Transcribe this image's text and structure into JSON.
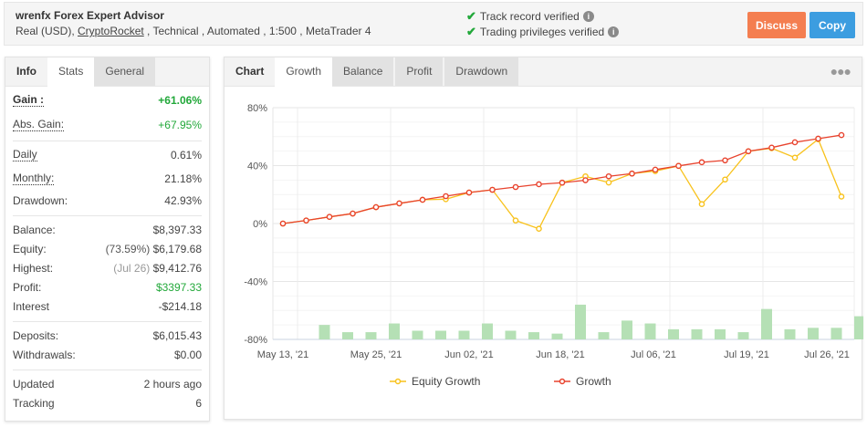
{
  "header": {
    "title": "wrenfx Forex Expert Advisor",
    "subtitle_prefix": "Real (USD), ",
    "broker_link": "CryptoRocket",
    "subtitle_suffix": " , Technical , Automated , 1:500 , MetaTrader 4",
    "verifications": [
      {
        "label": "Track record verified",
        "icon": "check-icon"
      },
      {
        "label": "Trading privileges verified",
        "icon": "check-icon"
      }
    ],
    "discuss_label": "Discuss",
    "copy_label": "Copy",
    "colors": {
      "discuss": "#f47e50",
      "copy": "#3c9de0",
      "verified": "#22a83a"
    }
  },
  "left_panel": {
    "tabs": [
      {
        "label": "Info"
      },
      {
        "label": "Stats"
      },
      {
        "label": "General"
      }
    ],
    "gain": {
      "label": "Gain :",
      "value": "+61.06%"
    },
    "abs_gain": {
      "label": "Abs. Gain:",
      "value": "+67.95%"
    },
    "daily": {
      "label": "Daily",
      "value": "0.61%"
    },
    "monthly": {
      "label": "Monthly:",
      "value": "21.18%"
    },
    "drawdown": {
      "label": "Drawdown:",
      "value": "42.93%"
    },
    "balance": {
      "label": "Balance:",
      "value": "$8,397.33"
    },
    "equity": {
      "label": "Equity:",
      "pct": "(73.59%)",
      "value": "$6,179.68"
    },
    "highest": {
      "label": "Highest:",
      "date": "(Jul 26)",
      "value": "$9,412.76"
    },
    "profit": {
      "label": "Profit:",
      "value": "$3397.33"
    },
    "interest": {
      "label": "Interest",
      "value": "-$214.18"
    },
    "deposits": {
      "label": "Deposits:",
      "value": "$6,015.43"
    },
    "withdrawals": {
      "label": "Withdrawals:",
      "value": "$0.00"
    },
    "updated": {
      "label": "Updated",
      "value": "2 hours ago"
    },
    "tracking": {
      "label": "Tracking",
      "value": "6"
    }
  },
  "right_panel": {
    "tabs": [
      {
        "label": "Chart"
      },
      {
        "label": "Growth"
      },
      {
        "label": "Balance"
      },
      {
        "label": "Profit"
      },
      {
        "label": "Drawdown"
      }
    ],
    "menu_icon": "more-dots-icon"
  },
  "chart_data": {
    "type": "line",
    "title": "",
    "xlabel": "",
    "ylabel": "",
    "ylim": [
      -80,
      80
    ],
    "yticks": [
      "80%",
      "40%",
      "0%",
      "-40%",
      "-80%"
    ],
    "xtick_labels": [
      "May 13, '21",
      "May 25, '21",
      "Jun 02, '21",
      "Jun 18, '21",
      "Jul 06, '21",
      "Jul 19, '21",
      "Jul 26, '21"
    ],
    "grid": true,
    "legend_position": "bottom",
    "points": 25,
    "series": [
      {
        "name": "Equity Growth",
        "color": "#f8c21c",
        "marker": "circle-open",
        "values": [
          0,
          2.1,
          4.6,
          6.9,
          11.3,
          13.9,
          16.4,
          16.8,
          21.4,
          23.3,
          2.1,
          -3.6,
          28.2,
          32.6,
          28.3,
          34.5,
          36.2,
          39.8,
          13.4,
          30.4,
          49.9,
          52.0,
          45.5,
          58.2,
          18.6
        ]
      },
      {
        "name": "Growth",
        "color": "#e8432e",
        "marker": "circle-open",
        "values": [
          0,
          2.1,
          4.6,
          6.9,
          11.3,
          13.9,
          16.4,
          18.9,
          21.4,
          23.3,
          25.2,
          27.1,
          28.2,
          29.9,
          32.6,
          34.5,
          37.2,
          39.8,
          42.3,
          43.6,
          49.9,
          52.4,
          56.1,
          58.6,
          61.06
        ]
      },
      {
        "name": "Bars (unlabeled)",
        "color": "#b5e0b5",
        "type": "bar",
        "values": [
          null,
          10,
          5,
          5,
          11,
          6,
          6,
          6,
          11,
          6,
          5,
          4,
          24,
          5,
          13,
          11,
          7,
          7,
          7,
          5,
          21,
          7,
          8,
          8,
          16
        ]
      }
    ]
  }
}
